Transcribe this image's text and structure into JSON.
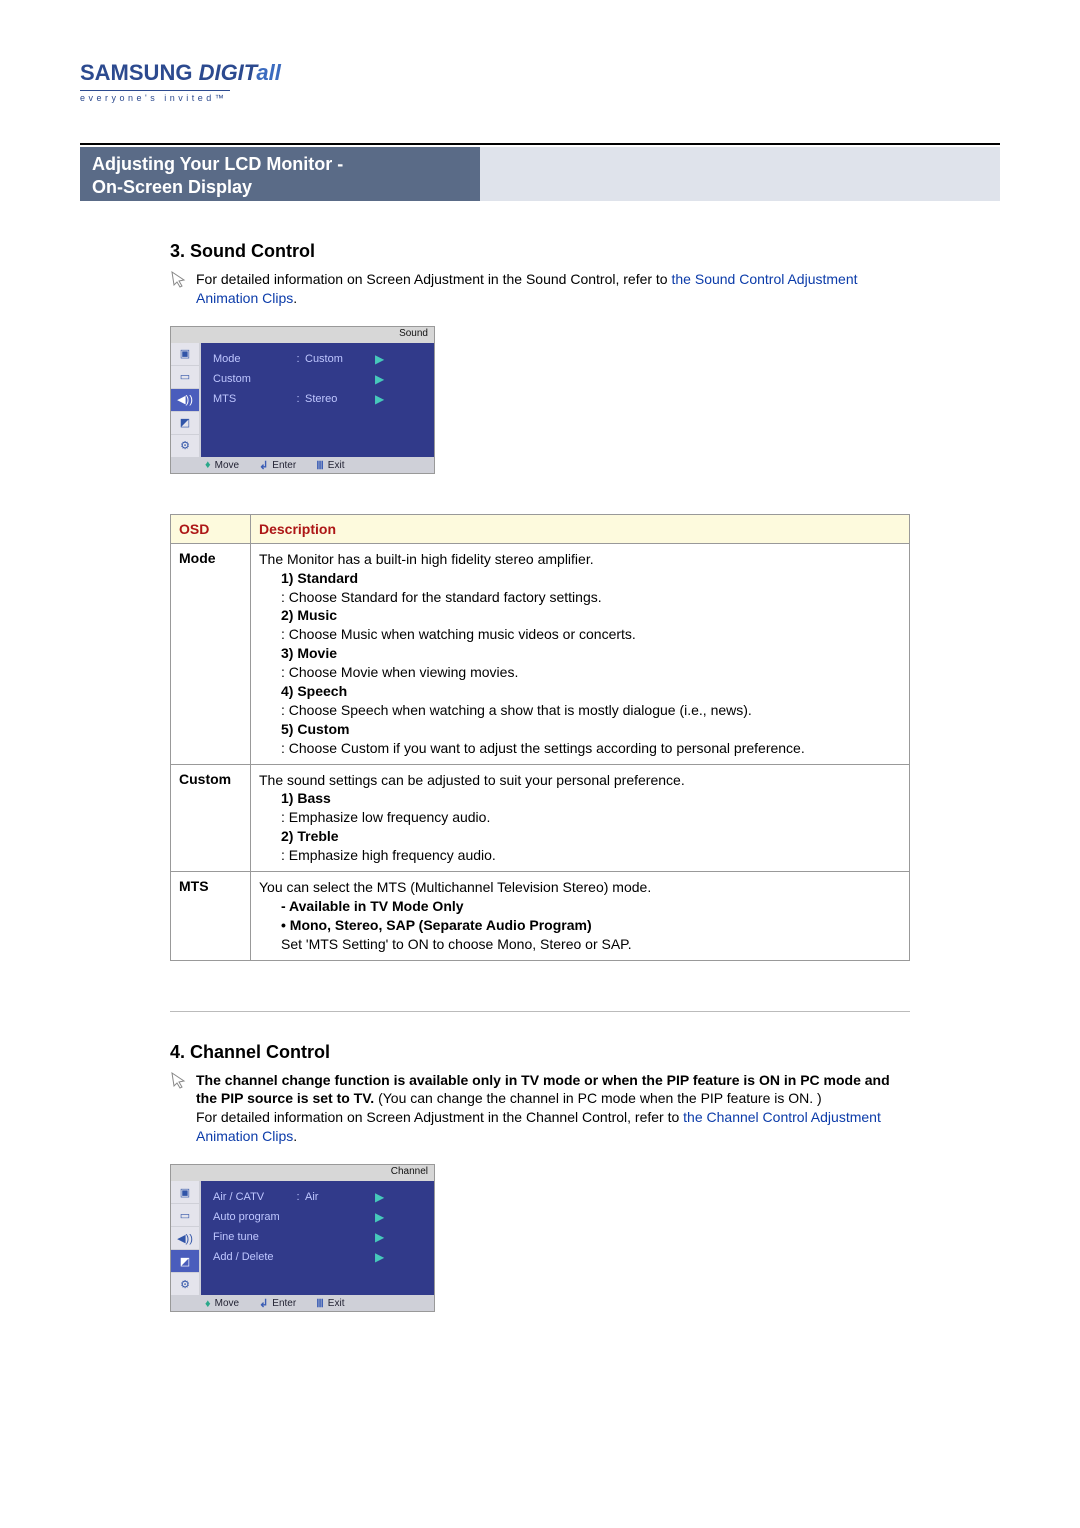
{
  "logo": {
    "samsung": "SAMSUNG ",
    "digit": "DIGIT",
    "all": "all",
    "tagline": "everyone's invited™"
  },
  "header": {
    "line1": "Adjusting Your LCD Monitor   -",
    "line2": "On-Screen Display"
  },
  "section3": {
    "title": "3. Sound Control",
    "intro_pre": "For detailed information on Screen Adjustment in the Sound Control, refer to ",
    "intro_link": "the Sound Control Adjustment Animation Clips",
    "intro_post": "."
  },
  "osd_sound": {
    "panel_label": "Sound",
    "rows": [
      {
        "label": "Mode",
        "colon": ":",
        "value": "Custom",
        "arrow": "▶"
      },
      {
        "label": "Custom",
        "colon": "",
        "value": "",
        "arrow": "▶"
      },
      {
        "label": "MTS",
        "colon": ":",
        "value": "Stereo",
        "arrow": "▶"
      }
    ],
    "footer": [
      {
        "sym": "♦",
        "label": "Move"
      },
      {
        "sym": "↲",
        "label": "Enter"
      },
      {
        "sym": "Ⅲ",
        "label": "Exit"
      }
    ]
  },
  "table_headers": {
    "osd": "OSD",
    "desc": "Description"
  },
  "table_rows": [
    {
      "osd": "Mode",
      "intro": "The Monitor has a built-in high fidelity stereo amplifier.",
      "items": [
        {
          "h": "1) Standard",
          "d": ": Choose Standard for the standard factory settings."
        },
        {
          "h": "2) Music",
          "d": ": Choose Music when watching music videos or concerts."
        },
        {
          "h": "3) Movie",
          "d": ": Choose Movie when viewing movies."
        },
        {
          "h": "4) Speech",
          "d": ": Choose Speech when watching a show that is mostly dialogue (i.e., news)."
        },
        {
          "h": "5) Custom",
          "d": ": Choose Custom if you want to adjust the settings according to personal preference."
        }
      ]
    },
    {
      "osd": "Custom",
      "intro": "The sound settings can be adjusted to suit your personal preference.",
      "items": [
        {
          "h": "1) Bass",
          "d": ": Emphasize low frequency audio."
        },
        {
          "h": "2) Treble",
          "d": ": Emphasize high frequency audio."
        }
      ]
    },
    {
      "osd": "MTS",
      "intro": "You can select the MTS (Multichannel Television Stereo) mode.",
      "bold_lines": [
        "- Available in TV Mode Only",
        "• Mono, Stereo, SAP (Separate Audio Program)"
      ],
      "tail": "Set 'MTS Setting' to ON to choose Mono, Stereo or SAP."
    }
  ],
  "section4": {
    "title": "4. Channel Control",
    "bold_intro": "The channel change function is available only in TV mode or when the PIP feature is ON in PC mode and the PIP source is set to TV. ",
    "paren": "(You can change the channel in PC mode when the PIP feature is ON. )",
    "intro2_pre": "For detailed information on Screen Adjustment in the Channel Control, refer to ",
    "intro2_link": "the Channel Control Adjustment Animation Clips",
    "intro2_post": "."
  },
  "osd_channel": {
    "panel_label": "Channel",
    "rows": [
      {
        "label": "Air / CATV",
        "colon": ":",
        "value": "Air",
        "arrow": "▶"
      },
      {
        "label": "Auto program",
        "colon": "",
        "value": "",
        "arrow": "▶"
      },
      {
        "label": "Fine tune",
        "colon": "",
        "value": "",
        "arrow": "▶"
      },
      {
        "label": "Add / Delete",
        "colon": "",
        "value": "",
        "arrow": "▶"
      }
    ],
    "footer": [
      {
        "sym": "♦",
        "label": "Move"
      },
      {
        "sym": "↲",
        "label": "Enter"
      },
      {
        "sym": "Ⅲ",
        "label": "Exit"
      }
    ]
  }
}
